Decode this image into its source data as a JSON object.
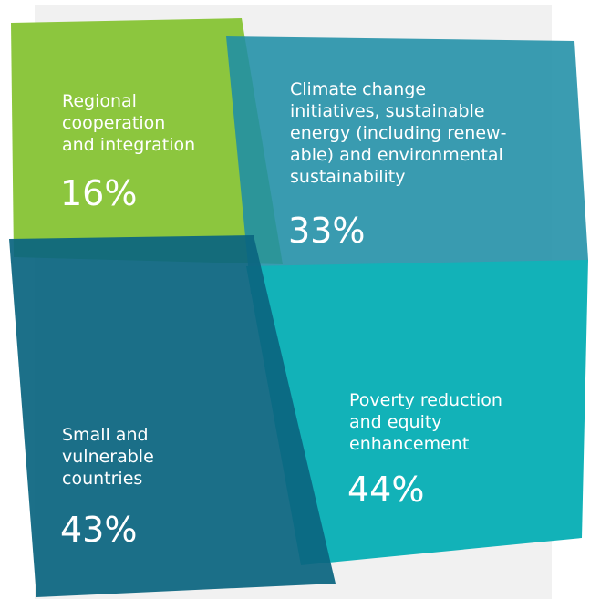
{
  "segments": [
    {
      "label_lines": [
        "Regional",
        "cooperation",
        "and integration"
      ],
      "percent": "16%"
    },
    {
      "label_lines": [
        "Climate change",
        "initiatives, sustainable",
        "energy (including renew-",
        "able) and environmental",
        "sustainability"
      ],
      "percent": "33%"
    },
    {
      "label_lines": [
        "Small and",
        "vulnerable",
        "countries"
      ],
      "percent": "43%"
    },
    {
      "label_lines": [
        "Poverty reduction",
        "and equity",
        "enhancement"
      ],
      "percent": "44%"
    }
  ]
}
